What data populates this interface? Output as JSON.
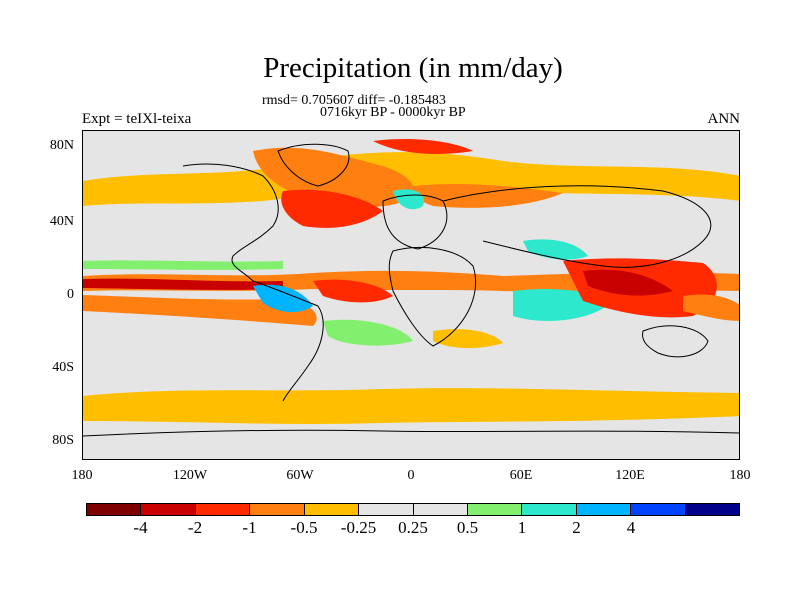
{
  "title": "Precipitation (in mm/day)",
  "stats_line": "rmsd= 0.705607  diff= -0.185483",
  "period_line": "0716kyr BP - 0000kyr BP",
  "experiment_label": "Expt = teIXl-teixa",
  "season_label": "ANN",
  "lat_labels": [
    "80N",
    "40N",
    "0",
    "40S",
    "80S"
  ],
  "lon_labels": [
    "180",
    "120W",
    "60W",
    "0",
    "60E",
    "120E",
    "180"
  ],
  "colorbar": {
    "colors": [
      "#7f0000",
      "#c80000",
      "#ff2a00",
      "#ff7f11",
      "#ffbf00",
      "#e5e5e5",
      "#e5e5e5",
      "#82f06e",
      "#2ee8cd",
      "#00b4ff",
      "#0043ff",
      "#00008b"
    ],
    "labels": [
      "-4",
      "-2",
      "-1",
      "-0.5",
      "-0.25",
      "0.25",
      "0.5",
      "1",
      "2",
      "4"
    ]
  },
  "map_background": "#e5e5e5"
}
